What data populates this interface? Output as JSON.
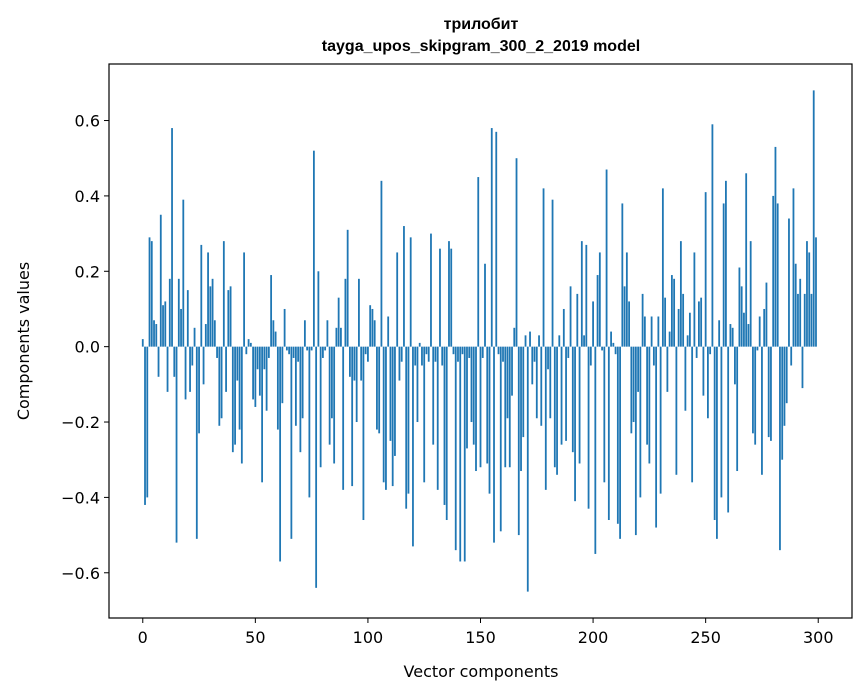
{
  "chart_data": {
    "type": "bar",
    "title_line1": "трилобит",
    "title_line2": "tayga_upos_skipgram_300_2_2019 model",
    "xlabel": "Vector components",
    "ylabel": "Components values",
    "xlim": [
      -15,
      315
    ],
    "ylim": [
      -0.72,
      0.75
    ],
    "x_ticks": [
      0,
      50,
      100,
      150,
      200,
      250,
      300
    ],
    "x_tick_labels": [
      "0",
      "50",
      "100",
      "150",
      "200",
      "250",
      "300"
    ],
    "y_ticks": [
      -0.6,
      -0.4,
      -0.2,
      0.0,
      0.2,
      0.4,
      0.6
    ],
    "y_tick_labels": [
      "−0.6",
      "−0.4",
      "−0.2",
      "0.0",
      "0.2",
      "0.4",
      "0.6"
    ],
    "grid": false,
    "bar_color": "#1f77b4",
    "x_start": 0,
    "values": [
      0.02,
      -0.42,
      -0.4,
      0.29,
      0.28,
      0.07,
      0.06,
      -0.08,
      0.35,
      0.11,
      0.12,
      -0.12,
      0.18,
      0.58,
      -0.08,
      -0.52,
      0.18,
      0.1,
      0.39,
      -0.14,
      0.15,
      -0.12,
      -0.05,
      0.05,
      -0.51,
      -0.23,
      0.27,
      -0.1,
      0.06,
      0.25,
      0.16,
      0.18,
      0.07,
      -0.03,
      -0.21,
      -0.19,
      0.28,
      -0.12,
      0.15,
      0.16,
      -0.28,
      -0.26,
      -0.09,
      -0.22,
      -0.31,
      0.25,
      -0.02,
      0.02,
      0.01,
      -0.14,
      -0.16,
      -0.06,
      -0.13,
      -0.36,
      -0.06,
      -0.17,
      -0.03,
      0.19,
      0.07,
      0.04,
      -0.22,
      -0.57,
      -0.15,
      0.1,
      -0.01,
      -0.02,
      -0.51,
      -0.03,
      -0.21,
      -0.04,
      -0.28,
      -0.19,
      0.07,
      -0.01,
      -0.4,
      -0.01,
      0.52,
      -0.64,
      0.2,
      -0.32,
      -0.03,
      -0.01,
      0.07,
      -0.26,
      -0.19,
      -0.31,
      0.05,
      0.13,
      0.05,
      -0.38,
      0.18,
      0.31,
      -0.08,
      -0.37,
      -0.09,
      -0.2,
      0.18,
      -0.09,
      -0.46,
      -0.02,
      -0.04,
      0.11,
      0.1,
      0.07,
      -0.22,
      -0.23,
      0.44,
      -0.36,
      -0.38,
      0.08,
      -0.25,
      -0.37,
      -0.29,
      0.25,
      -0.09,
      -0.04,
      0.32,
      -0.43,
      -0.39,
      0.29,
      -0.53,
      -0.05,
      -0.2,
      0.01,
      -0.05,
      -0.36,
      -0.02,
      -0.04,
      0.3,
      -0.26,
      -0.04,
      -0.38,
      0.26,
      -0.05,
      -0.42,
      -0.46,
      0.28,
      0.26,
      -0.02,
      -0.54,
      -0.04,
      -0.57,
      -0.02,
      -0.57,
      -0.27,
      -0.03,
      -0.2,
      -0.26,
      -0.33,
      0.45,
      -0.32,
      -0.03,
      0.22,
      -0.31,
      -0.39,
      0.58,
      -0.52,
      0.57,
      -0.02,
      -0.49,
      -0.04,
      -0.32,
      -0.19,
      -0.32,
      -0.13,
      0.05,
      0.5,
      -0.5,
      -0.33,
      -0.24,
      0.03,
      -0.65,
      0.04,
      -0.1,
      -0.04,
      -0.19,
      0.03,
      -0.21,
      0.42,
      -0.38,
      -0.06,
      -0.19,
      0.39,
      -0.32,
      -0.34,
      0.03,
      -0.26,
      0.1,
      -0.25,
      -0.03,
      0.16,
      -0.28,
      -0.41,
      0.14,
      -0.31,
      0.28,
      0.03,
      0.27,
      -0.43,
      -0.05,
      0.12,
      -0.55,
      0.19,
      0.25,
      -0.01,
      -0.36,
      0.47,
      -0.46,
      0.04,
      0.01,
      -0.02,
      -0.47,
      -0.51,
      0.38,
      0.16,
      0.25,
      0.12,
      -0.23,
      -0.2,
      -0.5,
      -0.12,
      -0.4,
      0.14,
      0.08,
      -0.26,
      -0.31,
      0.08,
      -0.05,
      -0.48,
      0.08,
      -0.39,
      0.42,
      0.13,
      -0.12,
      0.04,
      0.19,
      0.18,
      -0.34,
      0.1,
      0.28,
      0.14,
      -0.17,
      0.03,
      0.09,
      -0.36,
      0.25,
      -0.03,
      0.12,
      0.13,
      -0.13,
      0.41,
      -0.19,
      -0.02,
      0.59,
      -0.46,
      -0.51,
      0.07,
      -0.4,
      0.38,
      0.44,
      -0.44,
      0.06,
      0.05,
      -0.1,
      -0.33,
      0.21,
      0.16,
      0.09,
      0.46,
      0.06,
      0.28,
      -0.23,
      -0.26,
      -0.01,
      0.08,
      -0.34,
      0.1,
      0.17,
      -0.24,
      -0.25,
      0.4,
      0.53,
      0.38,
      -0.54,
      -0.3,
      -0.21,
      -0.15,
      0.34,
      -0.05,
      0.42,
      0.22,
      0.14,
      0.18,
      -0.11,
      0.14,
      0.28,
      0.25,
      0.14,
      0.68,
      0.29
    ]
  }
}
